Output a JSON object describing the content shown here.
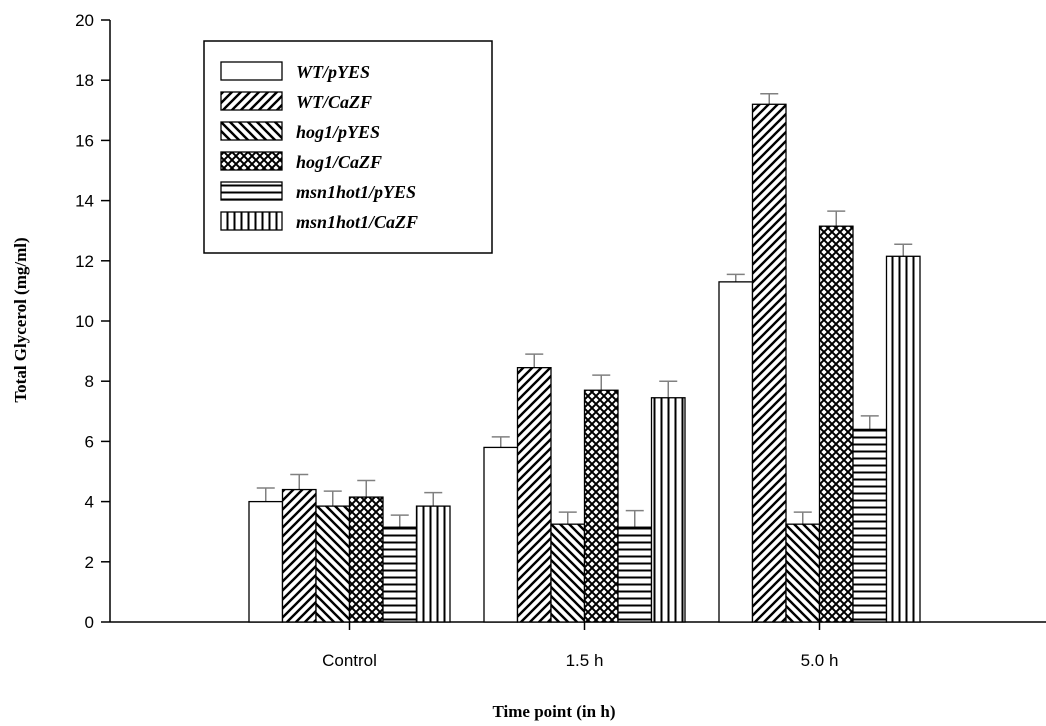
{
  "chart_data": {
    "type": "bar",
    "title": "",
    "xlabel": "Time point (in h)",
    "ylabel": "Total Glycerol (mg/ml)",
    "ylim": [
      0,
      20
    ],
    "yticks": [
      0,
      2,
      4,
      6,
      8,
      10,
      12,
      14,
      16,
      18,
      20
    ],
    "grid": false,
    "legend_position": "top-left",
    "categories": [
      "Control",
      "1.5 h",
      "5.0 h"
    ],
    "error_bars": "upper",
    "series": [
      {
        "name": "WT/pYES",
        "pattern": "empty",
        "values": [
          4.0,
          5.8,
          11.3
        ],
        "errors": [
          0.45,
          0.35,
          0.25
        ]
      },
      {
        "name": "WT/CaZF",
        "pattern": "diagonal-forward",
        "values": [
          4.4,
          8.45,
          17.2
        ],
        "errors": [
          0.5,
          0.45,
          0.35
        ]
      },
      {
        "name": "hog1/pYES",
        "pattern": "diagonal-backward",
        "values": [
          3.85,
          3.25,
          3.25
        ],
        "errors": [
          0.5,
          0.4,
          0.4
        ]
      },
      {
        "name": "hog1/CaZF",
        "pattern": "crosshatch",
        "values": [
          4.15,
          7.7,
          13.15
        ],
        "errors": [
          0.55,
          0.5,
          0.5
        ]
      },
      {
        "name": "msn1hot1/pYES",
        "pattern": "horizontal",
        "values": [
          3.15,
          3.15,
          6.4
        ],
        "errors": [
          0.4,
          0.55,
          0.45
        ]
      },
      {
        "name": "msn1hot1/CaZF",
        "pattern": "vertical",
        "values": [
          3.85,
          7.45,
          12.15
        ],
        "errors": [
          0.45,
          0.55,
          0.4
        ]
      }
    ]
  }
}
